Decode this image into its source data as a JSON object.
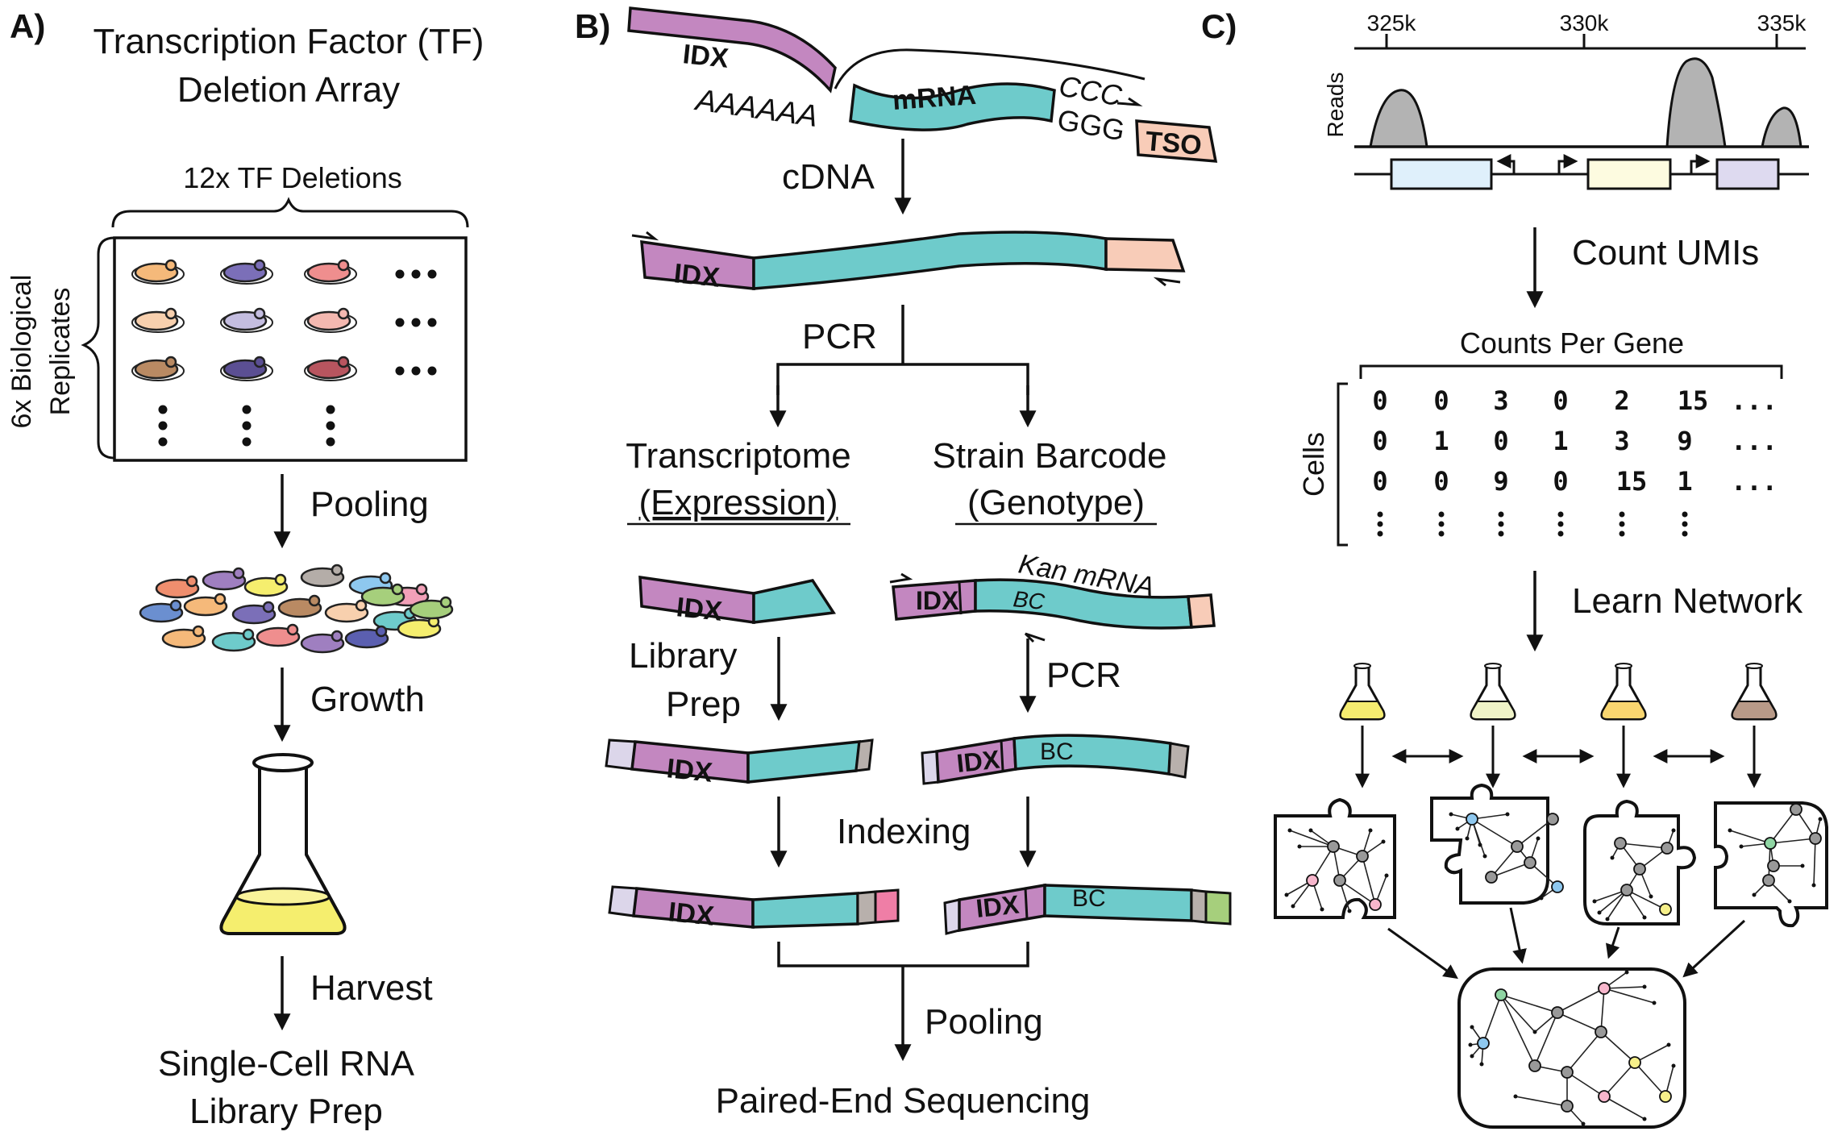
{
  "panel_a": {
    "label": "A)",
    "title_line1": "Transcription Factor (TF)",
    "title_line2": "Deletion Array",
    "brace_top_label": "12x TF Deletions",
    "brace_left_label_line1": "6x Biological",
    "brace_left_label_line2": "Replicates",
    "step_pooling": "Pooling",
    "step_growth": "Growth",
    "step_harvest": "Harvest",
    "final_line1": "Single-Cell RNA",
    "final_line2": "Library Prep",
    "colors": {
      "grid_row1": [
        "#f5b97a",
        "#7b6fb8",
        "#ef8e8e"
      ],
      "grid_row2": [
        "#f8d0ae",
        "#c4bde0",
        "#f4b8b0"
      ],
      "grid_row3": [
        "#b98a63",
        "#5b4f93",
        "#b8555f"
      ],
      "flask_liquid": "#f5ee6e"
    }
  },
  "panel_b": {
    "label": "B)",
    "seg_idx": "IDX",
    "seg_mrna": "mRNA",
    "polya": "AAAAAA",
    "ccc": "CCC",
    "ggg": "GGG",
    "seg_tso": "TSO",
    "step_cdna": "cDNA",
    "step_pcr": "PCR",
    "branch_left_line1": "Transcriptome",
    "branch_left_line2": "(Expression)",
    "branch_right_line1": "Strain Barcode",
    "branch_right_line2": "(Genotype)",
    "kan_mrna": "Kan mRNA",
    "seg_bc": "BC",
    "step_library_line1": "Library",
    "step_library_line2": "Prep",
    "step_pcr2": "PCR",
    "step_indexing": "Indexing",
    "step_pooling": "Pooling",
    "final": "Paired-End Sequencing",
    "colors": {
      "idx": "#c387c0",
      "mrna": "#6ecbcb",
      "tso": "#f8ccb8",
      "adapter_left": "#dcd6ea",
      "adapter_right": "#b8b0ac",
      "index_pink": "#ef7ea6",
      "index_green": "#a6cf7c"
    }
  },
  "panel_c": {
    "label": "C)",
    "axis_ticks": [
      "325k",
      "330k",
      "335k"
    ],
    "reads_label": "Reads",
    "step_count": "Count UMIs",
    "matrix_title": "Counts Per Gene",
    "matrix_rows_label": "Cells",
    "matrix": [
      [
        "0",
        "0",
        "3",
        "0",
        "2",
        "15",
        "..."
      ],
      [
        "0",
        "1",
        "0",
        "1",
        "3",
        "9",
        "..."
      ],
      [
        "0",
        "0",
        "9",
        "0",
        "15",
        "1",
        "..."
      ]
    ],
    "step_learn": "Learn Network",
    "colors": {
      "gene1": "#dff0fb",
      "gene2": "#fdfbe0",
      "gene3": "#dedaf0",
      "peak": "#b3b3b3",
      "flasks": [
        "#f5ec70",
        "#eff3c8",
        "#f9d670",
        "#b89a88"
      ],
      "node": "#999999",
      "node_blue": "#8ec8ef",
      "node_pink": "#f7b6cc",
      "node_green": "#8fd5a3",
      "node_yellow": "#f6f08a"
    }
  }
}
